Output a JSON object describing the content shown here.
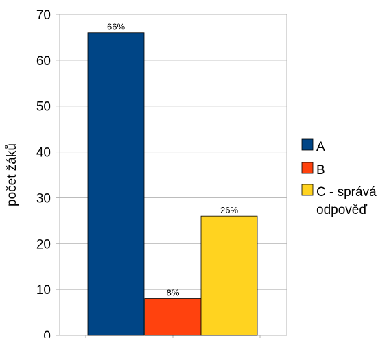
{
  "chart_data": {
    "type": "bar",
    "categories": [
      "A",
      "B",
      "C - správá odpověď"
    ],
    "values": [
      66,
      8,
      26
    ],
    "data_labels": [
      "66%",
      "8%",
      "26%"
    ],
    "colors": [
      "#004586",
      "#ff420e",
      "#ffd320"
    ],
    "ylabel": "počet žáků",
    "xlabel": "",
    "ylim": [
      0,
      70
    ],
    "yticks": [
      0,
      10,
      20,
      30,
      40,
      50,
      60,
      70
    ],
    "grid": true,
    "legend": {
      "position": "right",
      "entries": [
        {
          "lines": [
            "A"
          ]
        },
        {
          "lines": [
            "B"
          ]
        },
        {
          "lines": [
            "C - správá",
            "odpověď"
          ]
        }
      ]
    }
  }
}
